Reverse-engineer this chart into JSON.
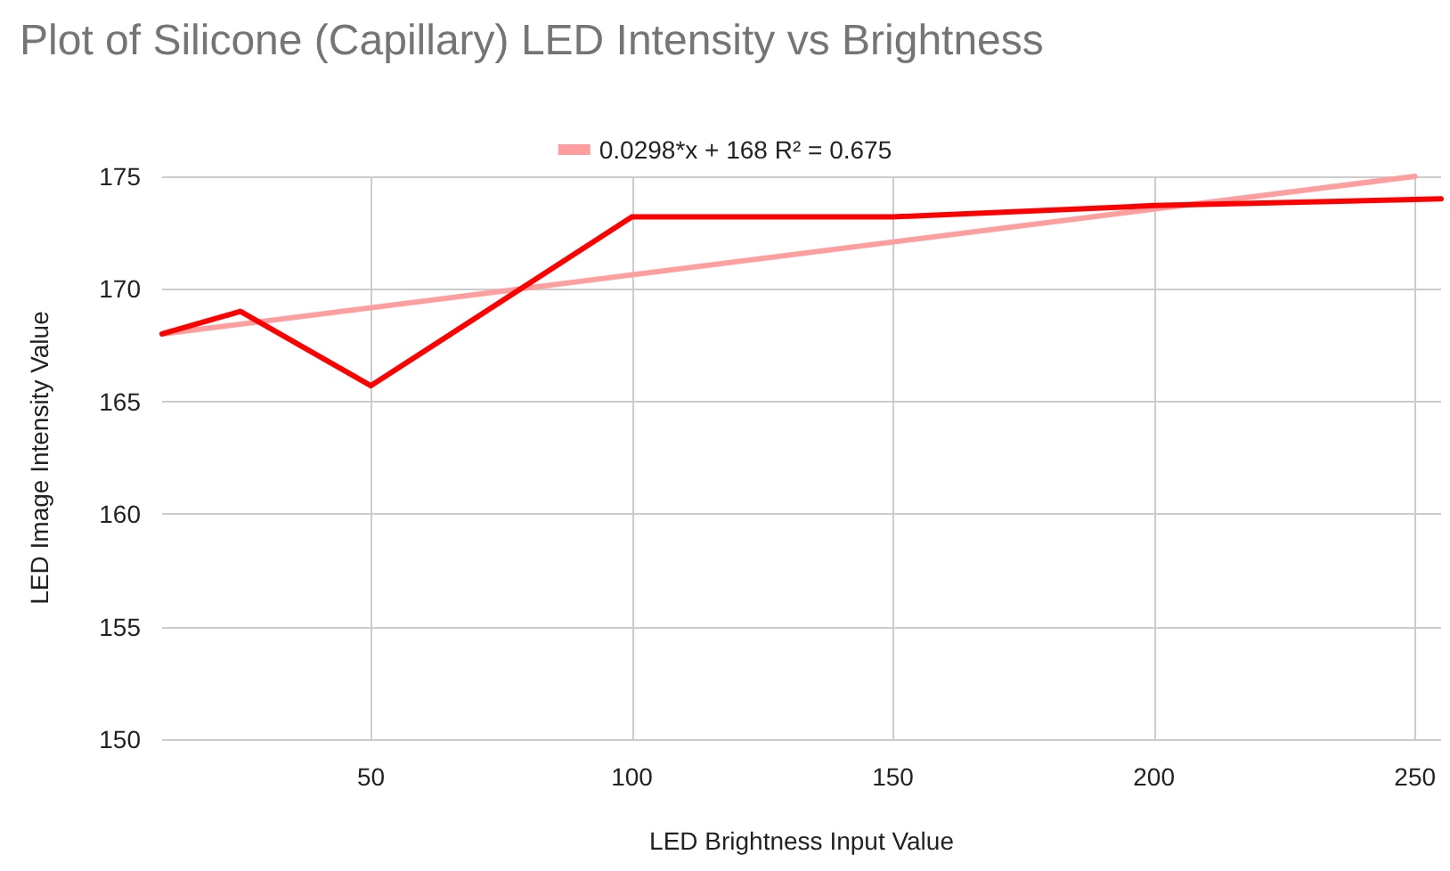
{
  "chart_data": {
    "type": "line",
    "title": "Plot of Silicone (Capillary) LED Intensity vs Brightness",
    "xlabel": "LED Brightness Input Value",
    "ylabel": "LED Image Intensity Value",
    "series": [
      {
        "color": "#ff0000",
        "x": [
          10,
          25,
          50,
          100,
          150,
          200,
          255
        ],
        "values": [
          168,
          169,
          165.7,
          173.2,
          173.2,
          173.7,
          174
        ]
      },
      {
        "name": "0.0298*x + 168 R² = 0.675",
        "color": "#ff9e9e",
        "x": [
          10,
          250
        ],
        "values": [
          168,
          175
        ]
      }
    ],
    "xlim": [
      10,
      255
    ],
    "xticks": [
      50,
      100,
      150,
      200,
      250
    ],
    "ylim": [
      150,
      175
    ],
    "yticks": [
      150,
      155,
      160,
      165,
      170,
      175
    ],
    "grid": true,
    "legend": "top",
    "marker": "none",
    "line_style": "solid"
  }
}
